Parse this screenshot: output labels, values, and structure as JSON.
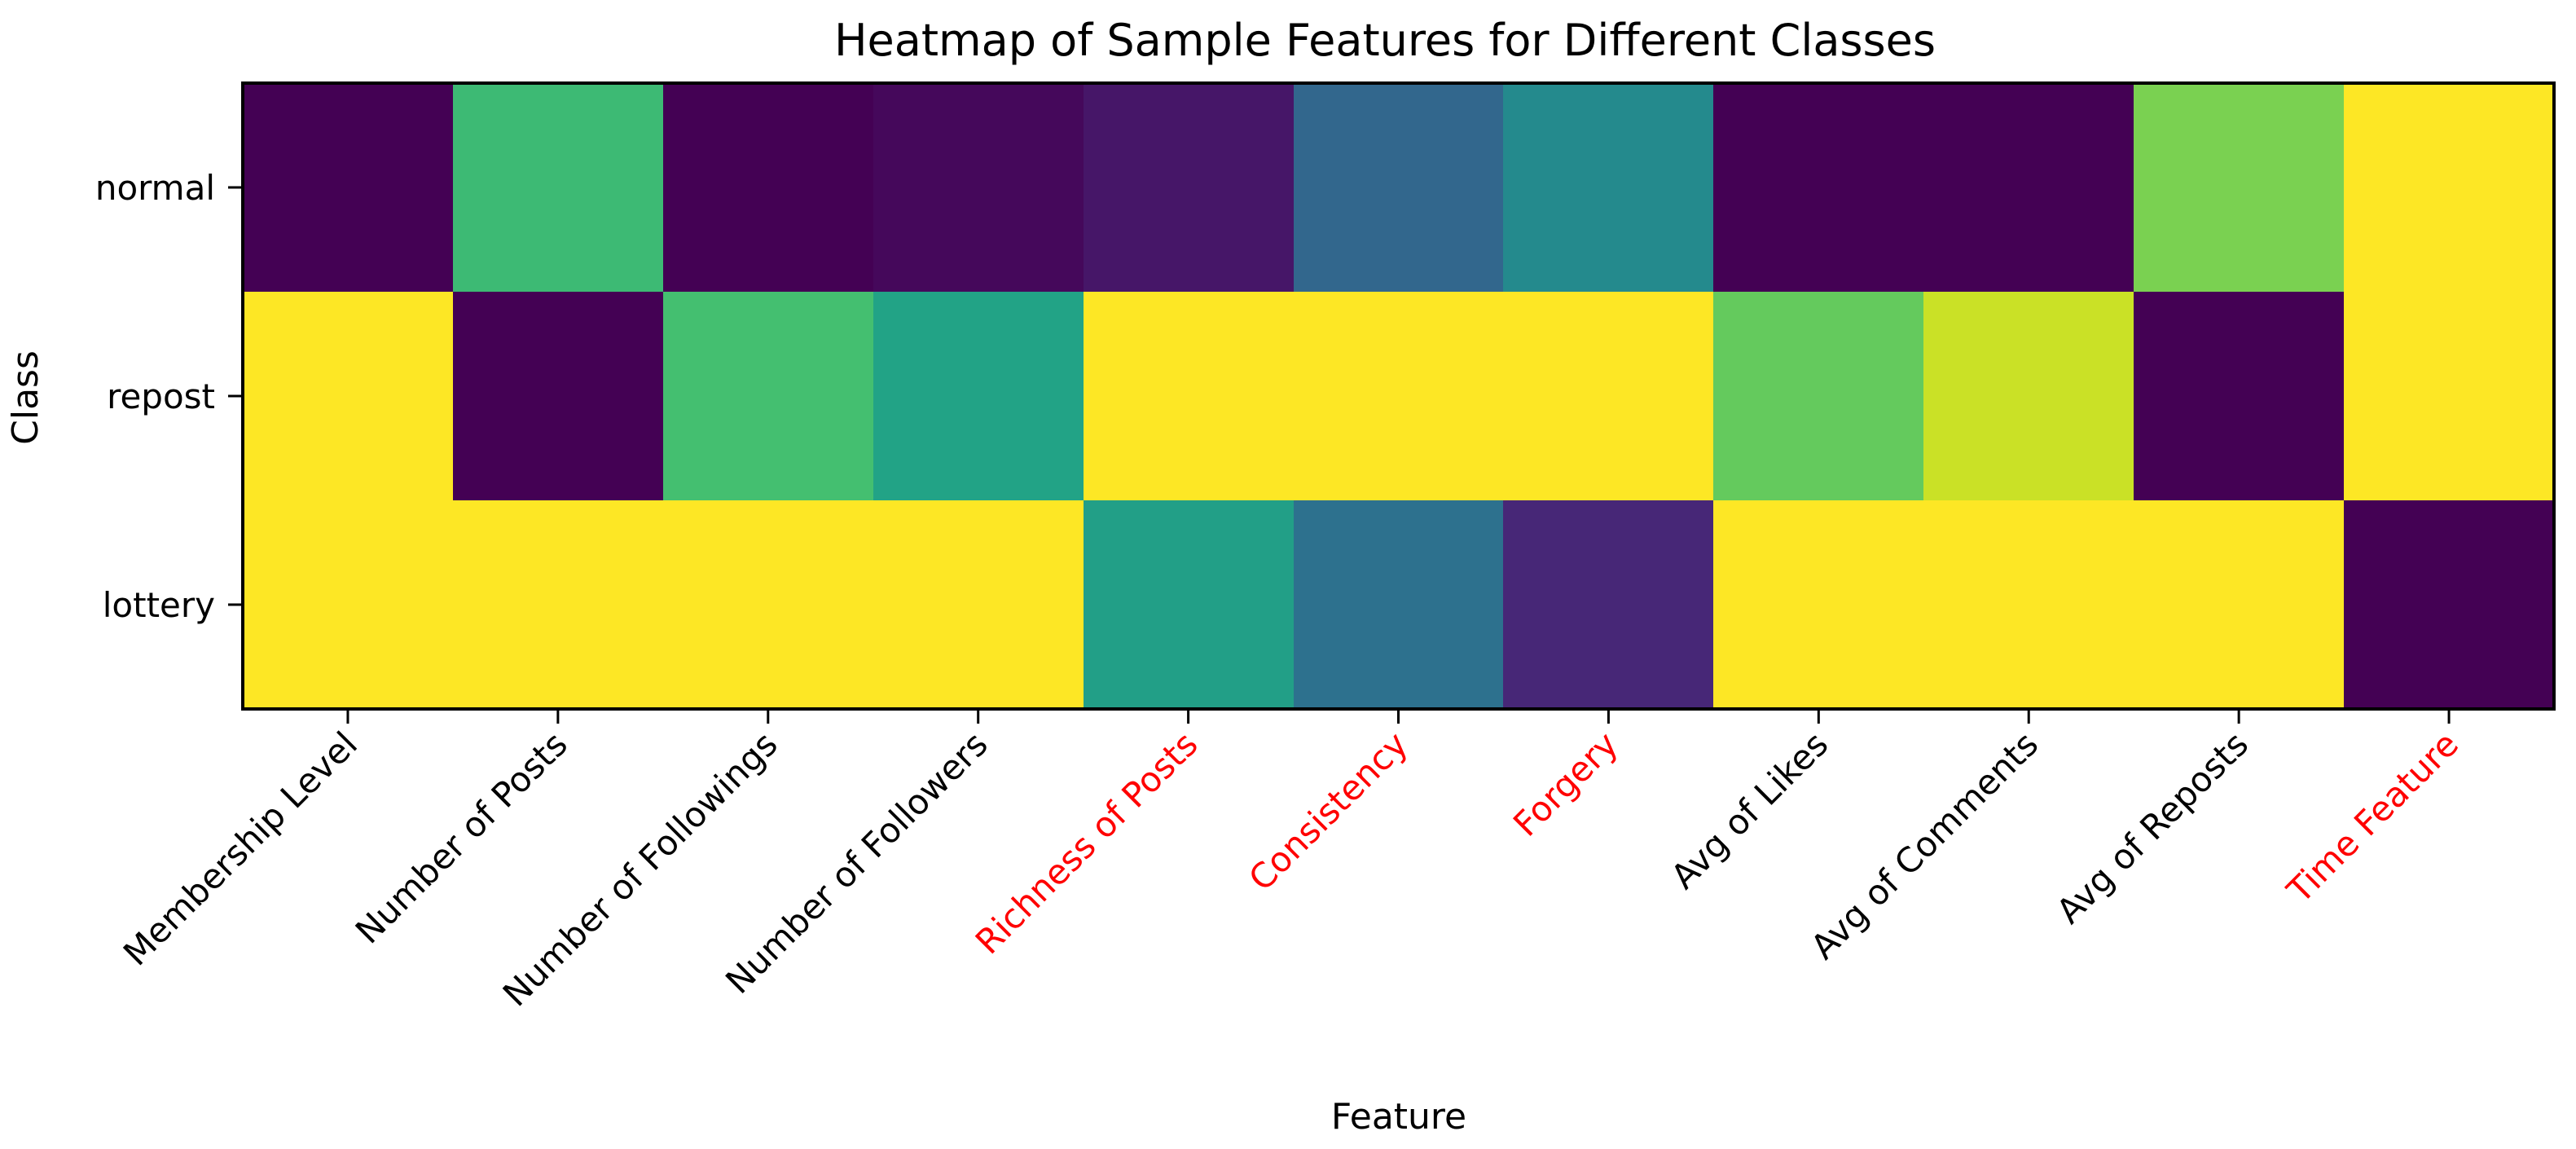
{
  "chart_data": {
    "type": "heatmap",
    "title": "Heatmap of Sample Features for Different Classes",
    "xlabel": "Feature",
    "ylabel": "Class",
    "colormap": "viridis",
    "value_range": [
      0,
      1
    ],
    "grid": false,
    "legend": "none",
    "rows": [
      "normal",
      "repost",
      "lottery"
    ],
    "columns": [
      "Membership Level",
      "Number of Posts",
      "Number of Followings",
      "Number of Followers",
      "Richness of Posts",
      "Consistency",
      "Forgery",
      "Avg of Likes",
      "Avg of Comments",
      "Avg of Reposts",
      "Time Feature"
    ],
    "highlighted_columns": [
      "Richness of Posts",
      "Consistency",
      "Forgery",
      "Time Feature"
    ],
    "highlight_color": "#ff0000",
    "values": [
      [
        0.0,
        0.68,
        0.0,
        0.02,
        0.06,
        0.33,
        0.47,
        0.0,
        0.0,
        0.8,
        1.0
      ],
      [
        1.0,
        0.0,
        0.7,
        0.58,
        1.0,
        1.0,
        1.0,
        0.76,
        0.92,
        0.0,
        1.0
      ],
      [
        1.0,
        1.0,
        1.0,
        1.0,
        0.56,
        0.37,
        0.11,
        1.0,
        1.0,
        1.0,
        0.0
      ]
    ]
  }
}
